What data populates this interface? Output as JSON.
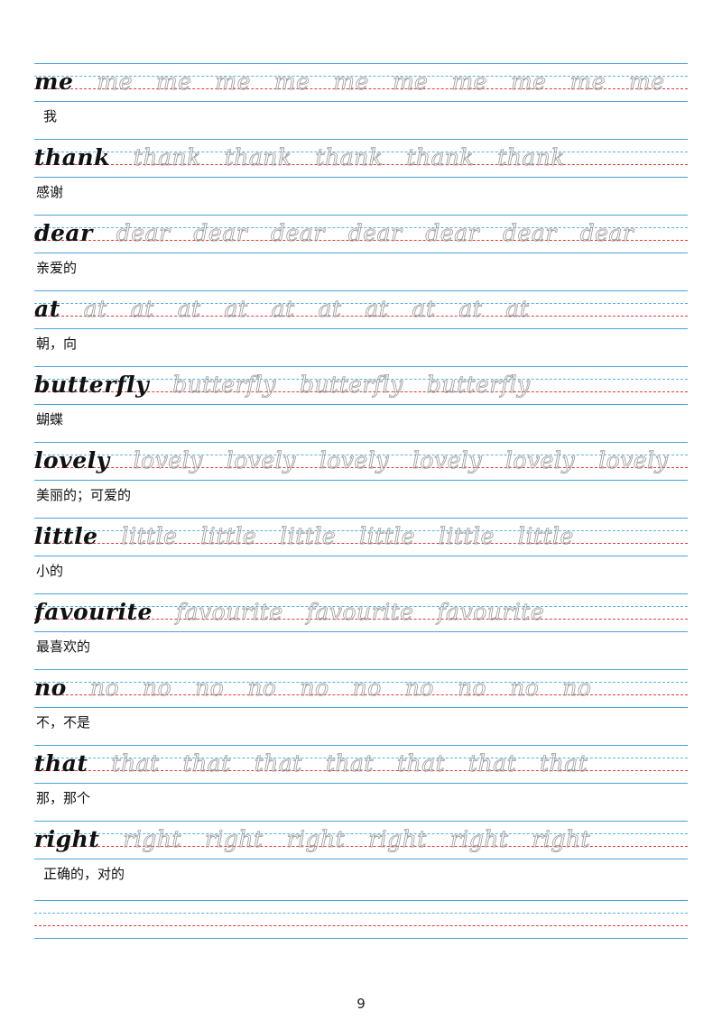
{
  "entries": [
    {
      "word": "me",
      "meaning": "我",
      "repeats": 11
    },
    {
      "word": "thank",
      "meaning": "感谢",
      "repeats": 5
    },
    {
      "word": "dear",
      "meaning": "亲爱的",
      "repeats": 7
    },
    {
      "word": "at",
      "meaning": "朝，向",
      "repeats": 10
    },
    {
      "word": "butterfly",
      "meaning": "蝴蝶",
      "repeats": 3
    },
    {
      "word": "lovely",
      "meaning": "美丽的；可爱的",
      "repeats": 6
    },
    {
      "word": "little",
      "meaning": "小的",
      "repeats": 6
    },
    {
      "word": "favourite",
      "meaning": "最喜欢的",
      "repeats": 3
    },
    {
      "word": "no",
      "meaning": "不，不是",
      "repeats": 10
    },
    {
      "word": "that",
      "meaning": "那，那个",
      "repeats": 7
    },
    {
      "word": "right",
      "meaning": "正确的，对的",
      "repeats": 6
    }
  ],
  "page_number": "9",
  "colors": {
    "guide_line": "#4aa3d8",
    "upper_dashed": "#5ab0e0",
    "lower_dashed": "#e03a3a",
    "trace_text": "#9a9a9a",
    "model_text": "#111111"
  }
}
